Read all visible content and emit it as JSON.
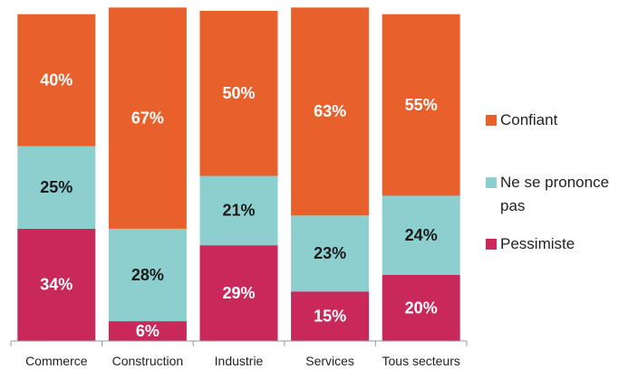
{
  "chart_data": {
    "type": "stacked_bar",
    "categories": [
      "Commerce",
      "Construction",
      "Industrie",
      "Services",
      "Tous secteurs"
    ],
    "series": [
      {
        "name": "Pessimiste",
        "color": "#c8285a",
        "values": [
          34,
          6,
          29,
          15,
          20
        ],
        "value_labels": [
          "34%",
          "6%",
          "29%",
          "15%",
          "20%"
        ]
      },
      {
        "name": "Ne se prononce pas",
        "color": "#8dcfcf",
        "values": [
          25,
          28,
          21,
          23,
          24
        ],
        "value_labels": [
          "25%",
          "28%",
          "21%",
          "23%",
          "24%"
        ]
      },
      {
        "name": "Confiant",
        "color": "#e8612c",
        "values": [
          40,
          67,
          50,
          63,
          55
        ],
        "value_labels": [
          "40%",
          "67%",
          "50%",
          "63%",
          "55%"
        ]
      }
    ],
    "ylim": [
      0,
      100
    ],
    "legend": "right"
  }
}
